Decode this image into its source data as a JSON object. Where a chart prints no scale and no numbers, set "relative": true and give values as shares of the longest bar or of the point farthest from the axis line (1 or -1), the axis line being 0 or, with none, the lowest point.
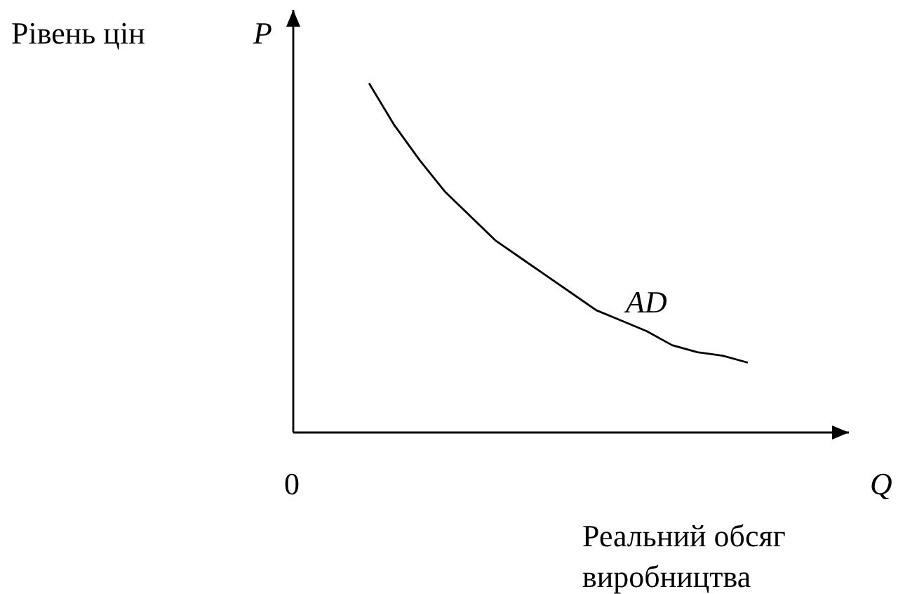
{
  "chart_data": {
    "type": "line",
    "relative": true,
    "ylabel": "Рівень цін",
    "xlabel": "Реальний обсяг виробництва",
    "annotations": [
      "P",
      "0",
      "Q"
    ],
    "categories": [
      null,
      null,
      null,
      null,
      null,
      null,
      null,
      null,
      null,
      null,
      null,
      null,
      null,
      null,
      null,
      null,
      null,
      null,
      null,
      null,
      null,
      null,
      null
    ],
    "series": [
      {
        "name": "AD",
        "color": "#000000",
        "values": [
          null,
          null,
          null,
          1,
          0.88,
          0.78,
          0.69,
          0.62,
          0.55,
          0.5,
          0.45,
          0.4,
          0.35,
          0.32,
          0.29,
          0.25,
          0.23,
          0.22,
          0.2,
          null,
          null,
          null,
          null
        ]
      }
    ],
    "marker": "none",
    "line_style": "solid"
  }
}
